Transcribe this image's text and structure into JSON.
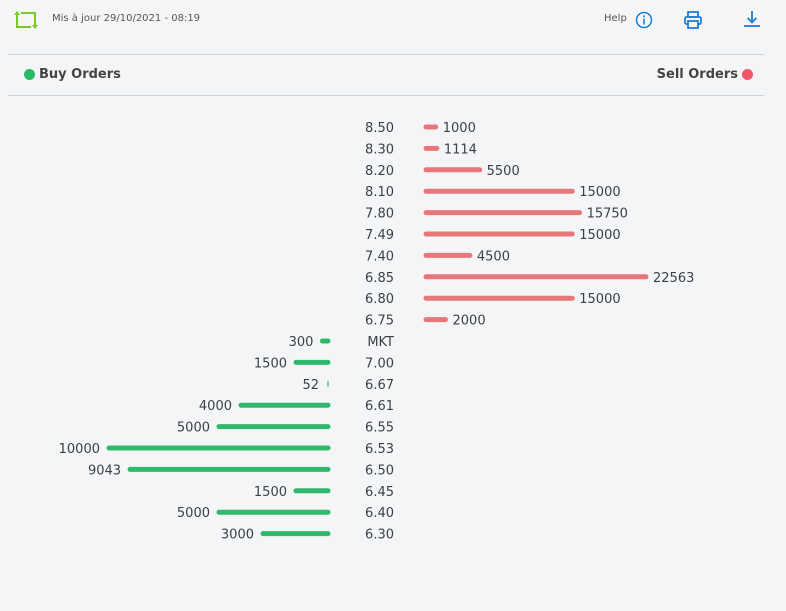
{
  "header": {
    "updated_label": "Mis à jour 29/10/2021 - 08:19",
    "help_label": "Help",
    "icons": [
      "refresh-icon",
      "info-icon",
      "print-icon",
      "download-icon"
    ]
  },
  "legend": {
    "buy_label": "Buy Orders",
    "sell_label": "Sell Orders",
    "buy_color": "#2ab866",
    "sell_color": "#f2546c"
  },
  "colors": {
    "accent_green": "#7acb1c",
    "accent_blue": "#1e7fd6",
    "sell_bar": "#e77778",
    "buy_bar": "#31b86d"
  },
  "chart_data": {
    "type": "bar",
    "title": "",
    "xlabel": "",
    "ylabel": "",
    "sell": [
      {
        "price": "8.50",
        "qty": 1000
      },
      {
        "price": "8.30",
        "qty": 1114
      },
      {
        "price": "8.20",
        "qty": 5500
      },
      {
        "price": "8.10",
        "qty": 15000
      },
      {
        "price": "7.80",
        "qty": 15750
      },
      {
        "price": "7.49",
        "qty": 15000
      },
      {
        "price": "7.40",
        "qty": 4500
      },
      {
        "price": "6.85",
        "qty": 22563
      },
      {
        "price": "6.80",
        "qty": 15000
      },
      {
        "price": "6.75",
        "qty": 2000
      }
    ],
    "buy": [
      {
        "price": "MKT",
        "qty": 300
      },
      {
        "price": "7.00",
        "qty": 1500
      },
      {
        "price": "6.67",
        "qty": 52
      },
      {
        "price": "6.61",
        "qty": 4000
      },
      {
        "price": "6.55",
        "qty": 5000
      },
      {
        "price": "6.53",
        "qty": 10000
      },
      {
        "price": "6.50",
        "qty": 9043
      },
      {
        "price": "6.45",
        "qty": 1500
      },
      {
        "price": "6.40",
        "qty": 5000
      },
      {
        "price": "6.30",
        "qty": 3000
      }
    ]
  }
}
